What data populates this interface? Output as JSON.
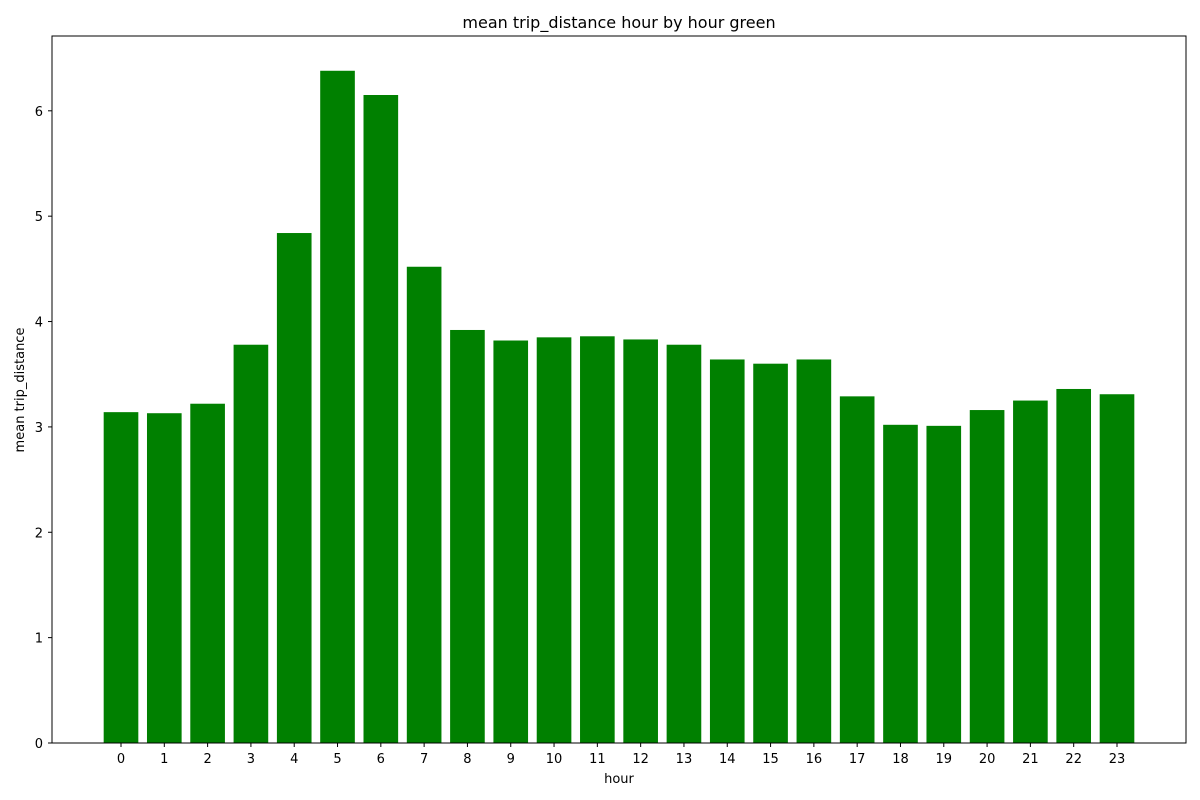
{
  "chart_data": {
    "type": "bar",
    "title": "mean trip_distance hour by hour green",
    "xlabel": "hour",
    "ylabel": "mean trip_distance",
    "categories": [
      "0",
      "1",
      "2",
      "3",
      "4",
      "5",
      "6",
      "7",
      "8",
      "9",
      "10",
      "11",
      "12",
      "13",
      "14",
      "15",
      "16",
      "17",
      "18",
      "19",
      "20",
      "21",
      "22",
      "23"
    ],
    "values": [
      3.14,
      3.13,
      3.22,
      3.78,
      4.84,
      6.38,
      6.15,
      4.52,
      3.92,
      3.82,
      3.85,
      3.86,
      3.83,
      3.78,
      3.64,
      3.6,
      3.64,
      3.29,
      3.02,
      3.01,
      3.16,
      3.25,
      3.36,
      3.31
    ],
    "ylim": [
      0,
      6.71
    ],
    "yticks": [
      0,
      1,
      2,
      3,
      4,
      5,
      6
    ],
    "bar_color": "#008000",
    "grid": false,
    "legend": "none"
  }
}
